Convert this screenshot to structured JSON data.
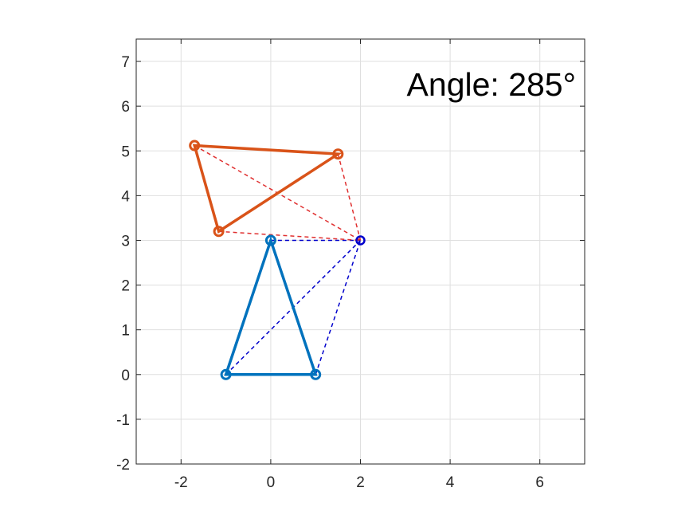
{
  "chart_data": {
    "type": "line",
    "title": "",
    "xlabel": "",
    "ylabel": "",
    "xlim": [
      -3,
      7
    ],
    "ylim": [
      -2,
      7.5
    ],
    "grid": true,
    "xticks": [
      -2,
      0,
      2,
      4,
      6
    ],
    "yticks": [
      -2,
      -1,
      0,
      1,
      2,
      3,
      4,
      5,
      6,
      7
    ],
    "xtick_labels": [
      "-2",
      "0",
      "2",
      "4",
      "6"
    ],
    "ytick_labels": [
      "-2",
      "-1",
      "0",
      "1",
      "2",
      "3",
      "4",
      "5",
      "6",
      "7"
    ],
    "annotation": "Angle: 285°",
    "pivot": {
      "x": 2,
      "y": 3,
      "color": "#0000cc"
    },
    "series": [
      {
        "color": "#0072bd",
        "points": [
          {
            "x": -1,
            "y": 0
          },
          {
            "x": 1,
            "y": 0
          },
          {
            "x": 0,
            "y": 3
          }
        ],
        "line_to_pivot_color": "#0000cc"
      },
      {
        "color": "#d95319",
        "points": [
          {
            "x": -1.7,
            "y": 5.12
          },
          {
            "x": 1.5,
            "y": 4.93
          },
          {
            "x": -1.16,
            "y": 3.2
          }
        ],
        "line_to_pivot_color": "#e03030"
      }
    ]
  }
}
